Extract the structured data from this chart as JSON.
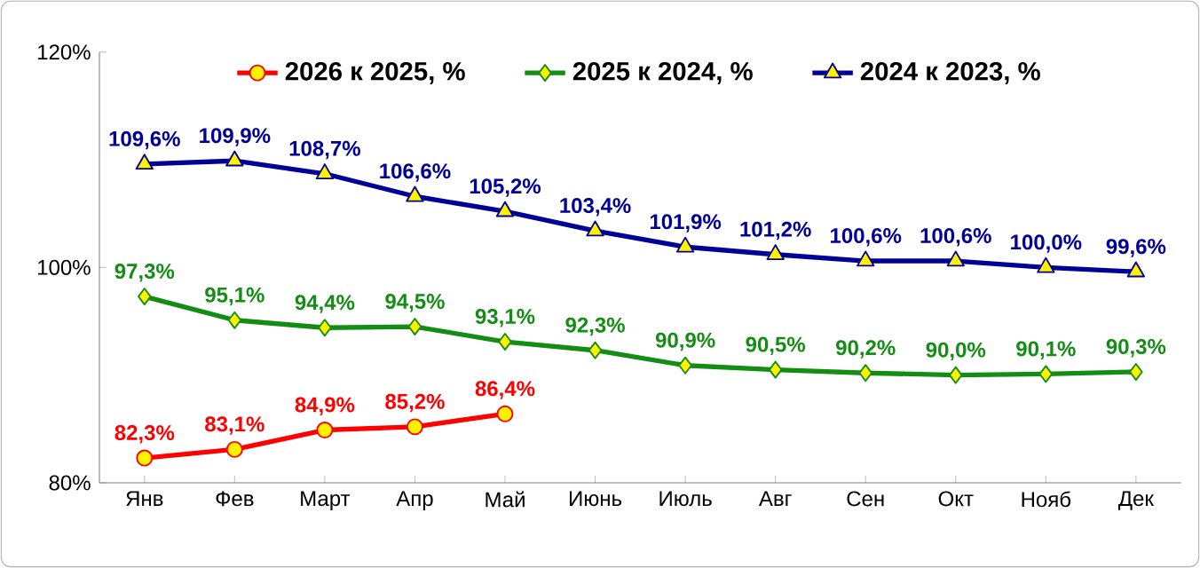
{
  "chart_data": {
    "type": "line",
    "categories": [
      "Янв",
      "Фев",
      "Март",
      "Апр",
      "Май",
      "Июнь",
      "Июль",
      "Авг",
      "Сен",
      "Окт",
      "Нояб",
      "Дек"
    ],
    "series": [
      {
        "name": "2026 к 2025, %",
        "color": "#ff0000",
        "marker": "circle",
        "values": [
          82.3,
          83.1,
          84.9,
          85.2,
          86.4,
          null,
          null,
          null,
          null,
          null,
          null,
          null
        ],
        "value_labels": [
          "82,3%",
          "83,1%",
          "84,9%",
          "85,2%",
          "86,4%",
          null,
          null,
          null,
          null,
          null,
          null,
          null
        ]
      },
      {
        "name": "2025 к 2024, %",
        "color": "#138d13",
        "marker": "diamond",
        "values": [
          97.3,
          95.1,
          94.4,
          94.5,
          93.1,
          92.3,
          90.9,
          90.5,
          90.2,
          90.0,
          90.1,
          90.3
        ],
        "value_labels": [
          "97,3%",
          "95,1%",
          "94,4%",
          "94,5%",
          "93,1%",
          "92,3%",
          "90,9%",
          "90,5%",
          "90,2%",
          "90,0%",
          "90,1%",
          "90,3%"
        ]
      },
      {
        "name": "2024 к 2023, %",
        "color": "#000099",
        "marker": "triangle",
        "values": [
          109.6,
          109.9,
          108.7,
          106.6,
          105.2,
          103.4,
          101.9,
          101.2,
          100.6,
          100.6,
          100.0,
          99.6
        ],
        "value_labels": [
          "109,6%",
          "109,9%",
          "108,7%",
          "106,6%",
          "105,2%",
          "103,4%",
          "101,9%",
          "101,2%",
          "100,6%",
          "100,6%",
          "100,0%",
          "99,6%"
        ]
      }
    ],
    "ylim": [
      80,
      120
    ],
    "yticks": [
      {
        "value": 80,
        "label": "80%"
      },
      {
        "value": 100,
        "label": "100%"
      },
      {
        "value": 120,
        "label": "120%"
      }
    ],
    "grid": false,
    "legend": "top",
    "line_style": "solid"
  }
}
